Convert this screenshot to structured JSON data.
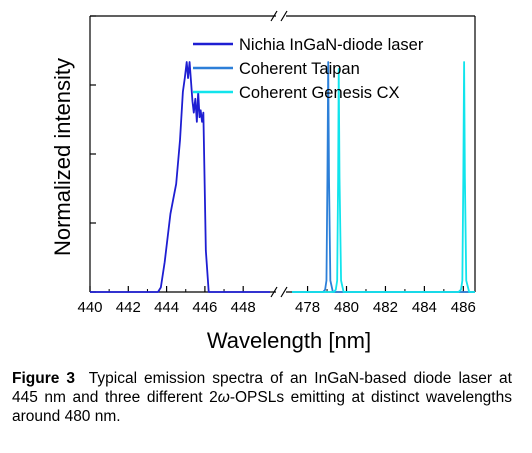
{
  "chart_data": {
    "type": "line",
    "xlabel": "Wavelength [nm]",
    "ylabel": "Normalized intensity",
    "x_segments": [
      {
        "xlim": [
          440,
          449.4
        ],
        "ticks": [
          440,
          442,
          444,
          446,
          448
        ]
      },
      {
        "xlim": [
          477.2,
          486.6
        ],
        "ticks": [
          478,
          480,
          482,
          484,
          486
        ]
      }
    ],
    "ylim": [
      0,
      1.2
    ],
    "grid": false,
    "legend": "top-right",
    "series": [
      {
        "name": "Nichia InGaN-diode laser",
        "color": "#1e1ed2",
        "segment": 0,
        "x": [
          440.0,
          443.0,
          443.55,
          443.7,
          443.9,
          444.2,
          444.5,
          444.7,
          444.85,
          444.95,
          445.05,
          445.12,
          445.2,
          445.28,
          445.35,
          445.42,
          445.5,
          445.58,
          445.65,
          445.72,
          445.78,
          445.85,
          445.92,
          445.97,
          446.05,
          446.2,
          446.8,
          449.4
        ],
        "y": [
          0.0,
          0.0,
          0.0,
          0.02,
          0.13,
          0.34,
          0.47,
          0.66,
          0.87,
          0.93,
          1.0,
          0.93,
          1.0,
          0.91,
          0.83,
          0.78,
          0.84,
          0.74,
          0.87,
          0.76,
          0.79,
          0.74,
          0.78,
          0.55,
          0.18,
          0.0,
          0.0,
          0.0
        ]
      },
      {
        "name": "Coherent Taipan",
        "color": "#2c7fd8",
        "segment": 1,
        "x": [
          477.2,
          478.8,
          478.9,
          478.97,
          479.02,
          479.06,
          479.1,
          479.17,
          479.3,
          486.6
        ],
        "y": [
          0.0,
          0.0,
          0.01,
          0.05,
          0.5,
          1.0,
          0.5,
          0.05,
          0.0,
          0.0
        ]
      },
      {
        "name": "Coherent Genesis CX",
        "color": "#11e4ec",
        "segment": 1,
        "x": [
          477.2,
          479.35,
          479.45,
          479.52,
          479.57,
          479.6,
          479.64,
          479.72,
          479.85,
          485.75,
          485.88,
          485.95,
          486.0,
          486.04,
          486.08,
          486.15,
          486.3,
          486.6
        ],
        "y": [
          0.0,
          0.0,
          0.01,
          0.05,
          0.5,
          0.97,
          0.5,
          0.05,
          0.0,
          0.0,
          0.01,
          0.05,
          0.5,
          1.0,
          0.5,
          0.05,
          0.0,
          0.0
        ]
      }
    ]
  },
  "caption": {
    "label": "Figure 3",
    "text_before": "Typical emission spectra of an InGaN-based diode laser at 445 nm and three different 2",
    "omega": "ω",
    "text_after": "-OPSLs emitting at distinct wavelengths around 480 nm."
  }
}
